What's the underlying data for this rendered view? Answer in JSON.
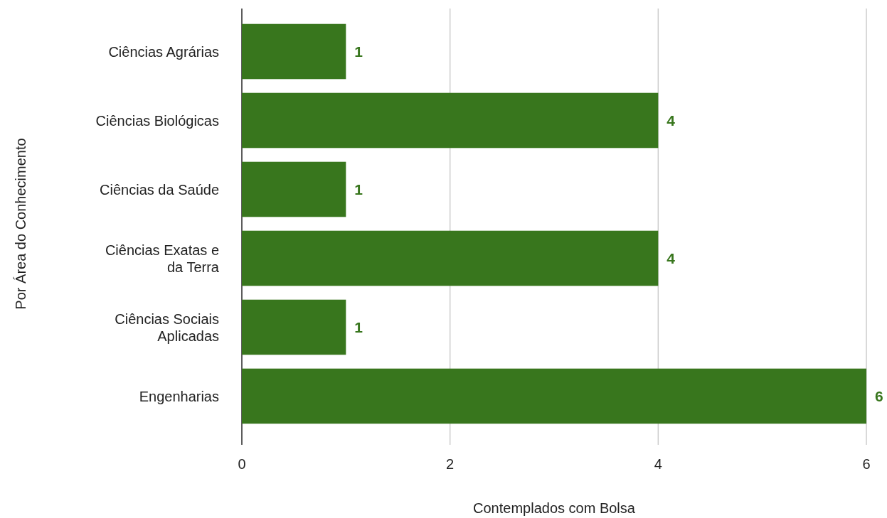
{
  "chart_data": {
    "type": "bar",
    "orientation": "horizontal",
    "xlabel": "Contemplados com Bolsa",
    "ylabel": "Por Área do Conhecimento",
    "categories": [
      "Ciências Agrárias",
      "Ciências Biológicas",
      "Ciências da Saúde",
      "Ciências Exatas e da Terra",
      "Ciências Sociais Aplicadas",
      "Engenharias"
    ],
    "values": [
      1,
      4,
      1,
      4,
      1,
      6
    ],
    "color": "#38761d",
    "xlim": [
      0,
      6
    ],
    "xticks": [
      0,
      2,
      4,
      6
    ],
    "grid": "x",
    "data_labels": true
  }
}
